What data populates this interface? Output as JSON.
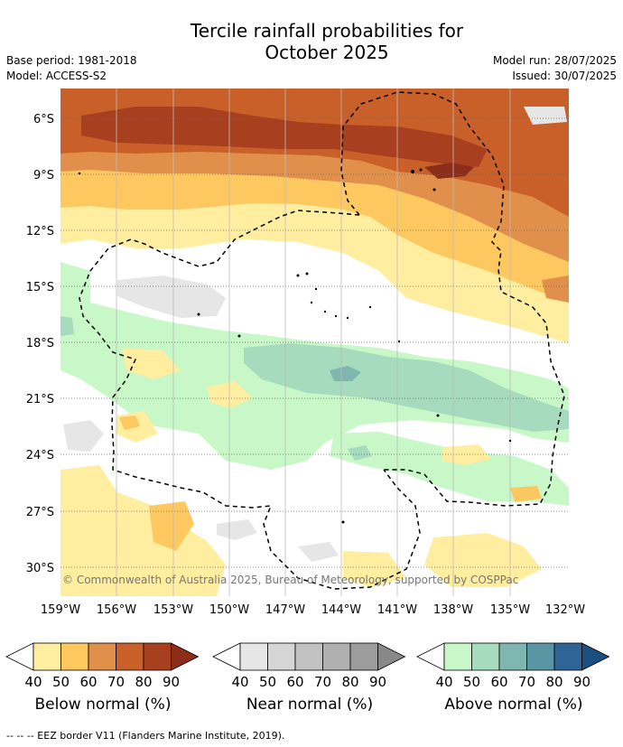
{
  "title_line1": "Tercile rainfall probabilities for",
  "title_line2": "October 2025",
  "meta_left": [
    "Base period: 1981-2018",
    "Model: ACCESS-S2"
  ],
  "meta_right": [
    "Model run: 28/07/2025",
    "Issued: 30/07/2025"
  ],
  "lat_labels": [
    "6°S",
    "9°S",
    "12°S",
    "15°S",
    "18°S",
    "21°S",
    "24°S",
    "27°S",
    "30°S"
  ],
  "lon_labels": [
    "159°W",
    "156°W",
    "153°W",
    "150°W",
    "147°W",
    "144°W",
    "141°W",
    "138°W",
    "135°W",
    "132°W"
  ],
  "copyright": "© Commonwealth of Australia 2025, Bureau of Meteorology, supported by COSPPac",
  "colorbars": [
    {
      "title": "Below normal (%)",
      "ticks": [
        "40",
        "50",
        "60",
        "70",
        "80",
        "90"
      ],
      "colors": [
        "#ffeda0",
        "#fec861",
        "#e0904a",
        "#c9602a",
        "#a8401f",
        "#8c2d1a"
      ]
    },
    {
      "title": "Near normal (%)",
      "ticks": [
        "40",
        "50",
        "60",
        "70",
        "80",
        "90"
      ],
      "colors": [
        "#e6e6e6",
        "#d6d6d6",
        "#c2c2c2",
        "#b0b0b0",
        "#9c9c9c",
        "#888888"
      ]
    },
    {
      "title": "Above normal (%)",
      "ticks": [
        "40",
        "50",
        "60",
        "70",
        "80",
        "90"
      ],
      "colors": [
        "#c8f7c8",
        "#a6dbbd",
        "#7fb7b0",
        "#5a95a4",
        "#2f6497",
        "#1a4f80"
      ]
    }
  ],
  "footer": "--  --  -- EEZ border V11 (Flanders Marine Institute, 2019)."
}
